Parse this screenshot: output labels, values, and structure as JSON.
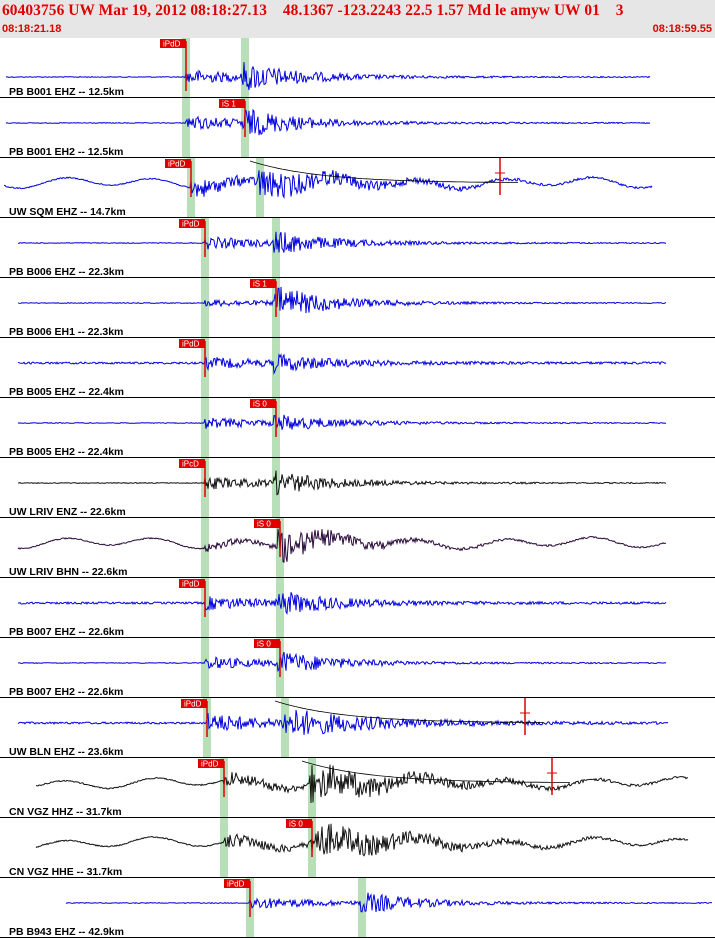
{
  "header": {
    "title": "60403756 UW Mar 19, 2012 08:18:27.13    48.1367 -123.2243 22.5 1.57 Md le amyw UW 01    3",
    "start_time": "08:18:21.18",
    "end_time": "08:18:59.55"
  },
  "colors": {
    "header_bg": "#e6e6e6",
    "header_text": "#e00000",
    "trace_blue": "#0000e0",
    "trace_black": "#111111",
    "trace_purple": "#2a0a3a",
    "pick_band": "#b8e0b8",
    "pick_flag": "#e00000"
  },
  "traces": [
    {
      "label": "PB B001 EHZ -- 12.5km",
      "color": "blue",
      "pick": "iPdD",
      "pick_kind": "P",
      "noise": "flat",
      "coda": "s-short"
    },
    {
      "label": "PB B001 EH2 -- 12.5km",
      "color": "blue",
      "pick": "iS 1",
      "pick_kind": "S",
      "noise": "flat",
      "coda": "s-short"
    },
    {
      "label": "UW SQM EHZ -- 14.7km",
      "color": "blue",
      "pick": "iPdD",
      "pick_kind": "P",
      "noise": "wavy",
      "coda": "long",
      "envelope": true
    },
    {
      "label": "PB B006 EHZ -- 22.3km",
      "color": "blue",
      "pick": "iPdD",
      "pick_kind": "P",
      "noise": "flat",
      "coda": "normal"
    },
    {
      "label": "PB B006 EH1 -- 22.3km",
      "color": "blue",
      "pick": "iS 1",
      "pick_kind": "S",
      "noise": "flat",
      "coda": "s-only"
    },
    {
      "label": "PB B005 EHZ -- 22.4km",
      "color": "blue",
      "pick": "iPdD",
      "pick_kind": "P",
      "noise": "fuzzy",
      "coda": "small"
    },
    {
      "label": "PB B005 EH2 -- 22.4km",
      "color": "blue",
      "pick": "iS 0",
      "pick_kind": "S",
      "noise": "flat",
      "coda": "small"
    },
    {
      "label": "UW LRIV ENZ -- 22.6km",
      "color": "black",
      "pick": "iPcD",
      "pick_kind": "P",
      "noise": "flat",
      "coda": "normal"
    },
    {
      "label": "UW LRIV BHN -- 22.6km",
      "color": "purple",
      "pick": "iS 0",
      "pick_kind": "S",
      "noise": "wavy",
      "coda": "s-only"
    },
    {
      "label": "PB B007 EHZ -- 22.6km",
      "color": "blue",
      "pick": "iPdD",
      "pick_kind": "P",
      "noise": "fuzzy",
      "coda": "normal"
    },
    {
      "label": "PB B007 EH2 -- 22.6km",
      "color": "blue",
      "pick": "iS 0",
      "pick_kind": "S",
      "noise": "flat",
      "coda": "normal"
    },
    {
      "label": "UW BLN EHZ -- 23.6km",
      "color": "blue",
      "pick": "iPdD",
      "pick_kind": "P",
      "noise": "fuzzy",
      "coda": "long",
      "envelope": true
    },
    {
      "label": "CN VGZ HHZ -- 31.7km",
      "color": "black",
      "pick": "iPdD",
      "pick_kind": "P",
      "noise": "wavy",
      "coda": "s-big",
      "envelope": true
    },
    {
      "label": "CN VGZ HHE -- 31.7km",
      "color": "black",
      "pick": "iS 0",
      "pick_kind": "S",
      "noise": "wavy",
      "coda": "s-big"
    },
    {
      "label": "PB B943 EHZ -- 42.9km",
      "color": "blue",
      "pick": "iPdD",
      "pick_kind": "P",
      "noise": "flat",
      "coda": "normal"
    }
  ]
}
